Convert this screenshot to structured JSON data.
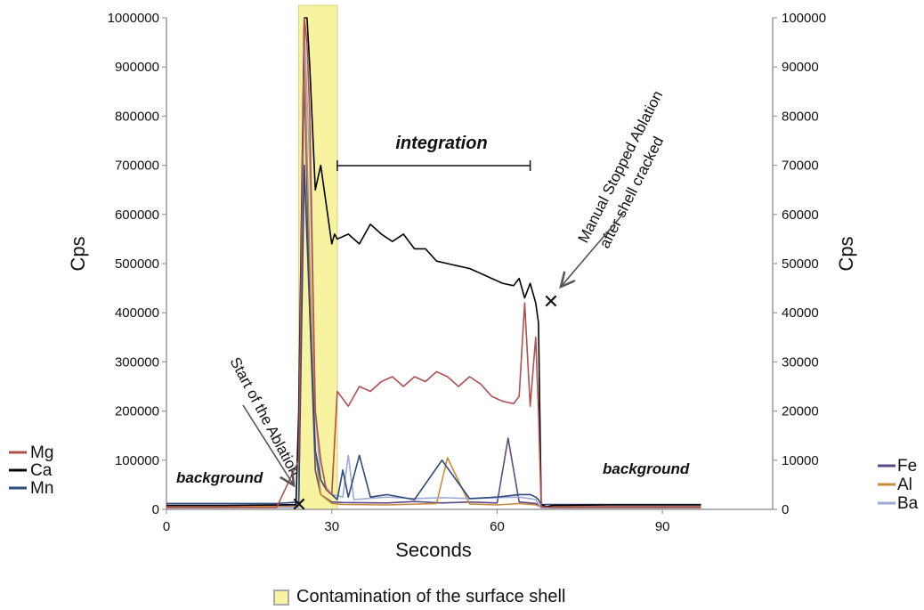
{
  "chart_data": {
    "type": "line",
    "title": "",
    "xlabel": "Seconds",
    "ylabel_left": "Cps",
    "ylabel_right": "Cps",
    "xlim": [
      0,
      110
    ],
    "ylim_left": [
      0,
      1000000
    ],
    "ylim_right": [
      0,
      100000
    ],
    "x_ticks": [
      0,
      30,
      60,
      90
    ],
    "x_tick_labels": [
      "0",
      "30",
      "60",
      "90"
    ],
    "y_left_ticks": [
      0,
      100000,
      200000,
      300000,
      400000,
      500000,
      600000,
      700000,
      800000,
      900000,
      1000000
    ],
    "y_left_tick_labels": [
      "0",
      "100000",
      "200000",
      "300000",
      "400000",
      "500000",
      "600000",
      "700000",
      "800000",
      "900000",
      "1000000"
    ],
    "y_right_ticks": [
      0,
      10000,
      20000,
      30000,
      40000,
      50000,
      60000,
      70000,
      80000,
      90000,
      100000
    ],
    "y_right_tick_labels": [
      "0",
      "10000",
      "20000",
      "30000",
      "40000",
      "50000",
      "60000",
      "70000",
      "80000",
      "90000",
      "100000"
    ],
    "grid": false,
    "legend_left": [
      {
        "name": "Mg",
        "color": "#b0504e"
      },
      {
        "name": "Ca",
        "color": "#000000"
      },
      {
        "name": "Mn",
        "color": "#2e4a7a"
      }
    ],
    "legend_right": [
      {
        "name": "Fe",
        "color": "#5b4a86"
      },
      {
        "name": "Al",
        "color": "#c98b3b"
      },
      {
        "name": "Ba",
        "color": "#9eaad6"
      }
    ],
    "contamination_band": {
      "x_start": 24,
      "x_end": 31,
      "color": "#f7f3a1"
    },
    "integration_range": [
      31,
      66
    ],
    "series": [
      {
        "name": "Ca",
        "axis": "left",
        "color": "#000000",
        "x": [
          0,
          10,
          20,
          23.5,
          24,
          25,
          25.5,
          26,
          27,
          28,
          29,
          30,
          30.5,
          31,
          33,
          35,
          37,
          39,
          41,
          43,
          45,
          47,
          49,
          51,
          53,
          55,
          57,
          59,
          61,
          63,
          64,
          65,
          66,
          67,
          67.5,
          68,
          69,
          70,
          80,
          90,
          97
        ],
        "y": [
          8000,
          8000,
          9000,
          10000,
          200000,
          1000000,
          1000000,
          900000,
          650000,
          700000,
          620000,
          540000,
          560000,
          550000,
          560000,
          540000,
          580000,
          560000,
          545000,
          560000,
          530000,
          530000,
          505000,
          500000,
          495000,
          490000,
          480000,
          470000,
          460000,
          455000,
          470000,
          430000,
          460000,
          420000,
          380000,
          10000,
          5000,
          8000,
          9000,
          9000,
          9000
        ]
      },
      {
        "name": "Mg",
        "axis": "left",
        "color": "#b0504e",
        "x": [
          0,
          20,
          24,
          25,
          25.5,
          26,
          27,
          28,
          29,
          30,
          31,
          33,
          35,
          37,
          39,
          41,
          43,
          45,
          47,
          49,
          51,
          53,
          55,
          57,
          59,
          61,
          63,
          64,
          65,
          66,
          67,
          67.5,
          68,
          70,
          97
        ],
        "y": [
          4000,
          4000,
          100000,
          1000000,
          950000,
          800000,
          200000,
          100000,
          40000,
          30000,
          240000,
          210000,
          250000,
          240000,
          260000,
          270000,
          250000,
          270000,
          260000,
          280000,
          270000,
          250000,
          270000,
          255000,
          230000,
          220000,
          215000,
          230000,
          420000,
          210000,
          350000,
          200000,
          5000,
          4000,
          4000
        ]
      },
      {
        "name": "Mn",
        "axis": "left",
        "color": "#2e4a7a",
        "x": [
          0,
          20,
          24,
          25,
          26,
          27,
          28,
          29,
          30,
          31,
          32,
          33,
          35,
          37,
          40,
          45,
          50,
          55,
          60,
          64,
          66,
          67,
          67.5,
          68,
          70,
          97
        ],
        "y": [
          12000,
          12000,
          15000,
          700000,
          400000,
          120000,
          60000,
          40000,
          30000,
          20000,
          80000,
          25000,
          110000,
          25000,
          30000,
          20000,
          100000,
          22000,
          25000,
          30000,
          30000,
          25000,
          20000,
          10000,
          10000,
          10000
        ]
      }
    ],
    "right_axis_series": [
      {
        "name": "Fe",
        "axis": "right",
        "color": "#5b4a86",
        "x": [
          0,
          24,
          25,
          26,
          27,
          28,
          30,
          32,
          40,
          45,
          50,
          55,
          60,
          62,
          64,
          66,
          67,
          68,
          97
        ],
        "y": [
          700,
          800,
          90000,
          40000,
          8000,
          3000,
          1500,
          1400,
          1300,
          1600,
          1300,
          1500,
          1300,
          14500,
          1500,
          1300,
          1200,
          600,
          600
        ]
      },
      {
        "name": "Al",
        "axis": "right",
        "color": "#c98b3b",
        "x": [
          0,
          24,
          25,
          26,
          27,
          28,
          30,
          32,
          40,
          49,
          51,
          55,
          60,
          64,
          66,
          67,
          68,
          97
        ],
        "y": [
          500,
          600,
          95000,
          50000,
          12000,
          3000,
          1200,
          1000,
          900,
          1200,
          10500,
          1100,
          900,
          1200,
          1000,
          900,
          500,
          500
        ]
      },
      {
        "name": "Ba",
        "axis": "right",
        "color": "#9eaad6",
        "x": [
          0,
          24,
          25,
          26,
          27,
          28,
          30,
          32,
          33,
          34,
          40,
          45,
          50,
          55,
          60,
          64,
          66,
          67,
          68,
          97
        ],
        "y": [
          300,
          400,
          98000,
          70000,
          20000,
          6000,
          3000,
          2500,
          11000,
          2000,
          2500,
          2200,
          2400,
          2200,
          2400,
          2500,
          2200,
          2000,
          300,
          300
        ]
      }
    ]
  },
  "annotations": {
    "integration": "integration",
    "background_left": "background",
    "background_right": "background",
    "start": "Start of the Ablation",
    "manual_line1": "Manual Stopped Ablation",
    "manual_line2": "after shell cracked",
    "marker": "✕"
  },
  "footer_legend": {
    "label": "Contamination of the surface shell"
  }
}
